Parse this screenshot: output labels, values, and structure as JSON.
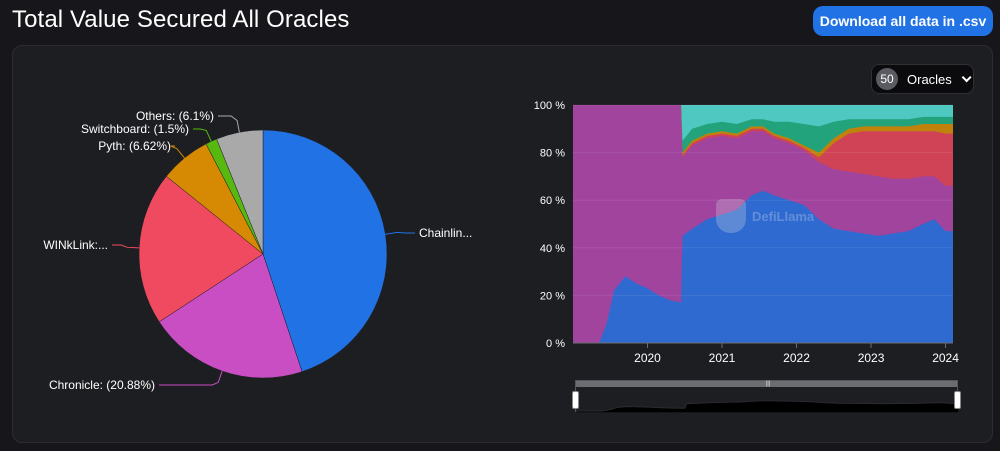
{
  "header": {
    "title": "Total Value Secured All Oracles",
    "download_label": "Download all data in .csv"
  },
  "oracle_selector": {
    "count": "50",
    "label": "Oracles"
  },
  "watermark": "DefiLlama",
  "chart_data": [
    {
      "type": "pie",
      "slices": [
        {
          "label": "Chainlin...",
          "value": 44.9,
          "color": "#2172e5"
        },
        {
          "label": "Chronicle: (20.88%)",
          "value": 20.88,
          "color": "#c94ec4"
        },
        {
          "label": "WINkLink:...",
          "value": 19.99,
          "color": "#f04a60"
        },
        {
          "label": "Pyth: (6.62%)",
          "value": 6.62,
          "color": "#d68a04"
        },
        {
          "label": "Switchboard: (1.5%)",
          "value": 1.5,
          "color": "#57b90f"
        },
        {
          "label": "Others: (6.1%)",
          "value": 6.1,
          "color": "#a9a9a9"
        }
      ]
    },
    {
      "type": "area",
      "stacked": true,
      "percent": true,
      "x_ticks": [
        "2020",
        "2021",
        "2022",
        "2023",
        "2024"
      ],
      "y_ticks": [
        "0 %",
        "20 %",
        "40 %",
        "60 %",
        "80 %",
        "100 %"
      ],
      "ylim": [
        0,
        100
      ],
      "xlim": [
        2019.0,
        2024.1
      ],
      "grid": true,
      "series": [
        {
          "color": "#2f6ad0",
          "points": [
            [
              2019.0,
              0
            ],
            [
              2019.35,
              0
            ],
            [
              2019.45,
              8
            ],
            [
              2019.55,
              22
            ],
            [
              2019.7,
              28
            ],
            [
              2019.85,
              25
            ],
            [
              2020.0,
              23
            ],
            [
              2020.15,
              20
            ],
            [
              2020.3,
              18
            ],
            [
              2020.45,
              17
            ],
            [
              2020.47,
              45
            ],
            [
              2020.6,
              48
            ],
            [
              2020.8,
              52
            ],
            [
              2021.0,
              54
            ],
            [
              2021.2,
              56
            ],
            [
              2021.4,
              62
            ],
            [
              2021.55,
              64
            ],
            [
              2021.7,
              62
            ],
            [
              2021.9,
              60
            ],
            [
              2022.1,
              58
            ],
            [
              2022.3,
              52
            ],
            [
              2022.5,
              48
            ],
            [
              2022.7,
              47
            ],
            [
              2022.9,
              46
            ],
            [
              2023.1,
              45
            ],
            [
              2023.3,
              46
            ],
            [
              2023.5,
              47
            ],
            [
              2023.7,
              50
            ],
            [
              2023.85,
              52
            ],
            [
              2024.0,
              47
            ],
            [
              2024.1,
              47
            ]
          ]
        },
        {
          "color": "#a0449e",
          "points": [
            [
              2019.0,
              100
            ],
            [
              2019.35,
              100
            ],
            [
              2019.45,
              100
            ],
            [
              2019.55,
              100
            ],
            [
              2019.7,
              100
            ],
            [
              2019.85,
              100
            ],
            [
              2020.0,
              100
            ],
            [
              2020.15,
              100
            ],
            [
              2020.3,
              100
            ],
            [
              2020.45,
              100
            ],
            [
              2020.47,
              78
            ],
            [
              2020.6,
              83
            ],
            [
              2020.8,
              86
            ],
            [
              2021.0,
              87
            ],
            [
              2021.2,
              86
            ],
            [
              2021.4,
              89
            ],
            [
              2021.55,
              89
            ],
            [
              2021.7,
              86
            ],
            [
              2021.9,
              84
            ],
            [
              2022.1,
              81
            ],
            [
              2022.3,
              76
            ],
            [
              2022.5,
              73
            ],
            [
              2022.7,
              72
            ],
            [
              2022.9,
              71
            ],
            [
              2023.1,
              70
            ],
            [
              2023.3,
              69
            ],
            [
              2023.5,
              69
            ],
            [
              2023.7,
              70
            ],
            [
              2023.85,
              70
            ],
            [
              2024.0,
              66
            ],
            [
              2024.1,
              66
            ]
          ]
        },
        {
          "color": "#d04356",
          "points": [
            [
              2019.0,
              100
            ],
            [
              2019.35,
              100
            ],
            [
              2019.45,
              100
            ],
            [
              2019.55,
              100
            ],
            [
              2019.7,
              100
            ],
            [
              2019.85,
              100
            ],
            [
              2020.0,
              100
            ],
            [
              2020.15,
              100
            ],
            [
              2020.3,
              100
            ],
            [
              2020.45,
              100
            ],
            [
              2020.47,
              79
            ],
            [
              2020.6,
              84
            ],
            [
              2020.8,
              87
            ],
            [
              2021.0,
              88
            ],
            [
              2021.2,
              87
            ],
            [
              2021.4,
              90
            ],
            [
              2021.55,
              90
            ],
            [
              2021.7,
              87
            ],
            [
              2021.9,
              85
            ],
            [
              2022.1,
              82
            ],
            [
              2022.3,
              78
            ],
            [
              2022.5,
              84
            ],
            [
              2022.7,
              88
            ],
            [
              2022.9,
              89
            ],
            [
              2023.1,
              89
            ],
            [
              2023.3,
              89
            ],
            [
              2023.5,
              89
            ],
            [
              2023.7,
              89
            ],
            [
              2023.85,
              89
            ],
            [
              2024.0,
              88
            ],
            [
              2024.1,
              88
            ]
          ]
        },
        {
          "color": "#c0820a",
          "points": [
            [
              2019.0,
              100
            ],
            [
              2019.35,
              100
            ],
            [
              2019.45,
              100
            ],
            [
              2019.55,
              100
            ],
            [
              2019.7,
              100
            ],
            [
              2019.85,
              100
            ],
            [
              2020.0,
              100
            ],
            [
              2020.15,
              100
            ],
            [
              2020.3,
              100
            ],
            [
              2020.45,
              100
            ],
            [
              2020.47,
              80
            ],
            [
              2020.6,
              85
            ],
            [
              2020.8,
              88
            ],
            [
              2021.0,
              89
            ],
            [
              2021.2,
              88
            ],
            [
              2021.4,
              91
            ],
            [
              2021.55,
              91
            ],
            [
              2021.7,
              88
            ],
            [
              2021.9,
              86
            ],
            [
              2022.1,
              83
            ],
            [
              2022.3,
              80
            ],
            [
              2022.5,
              86
            ],
            [
              2022.7,
              90
            ],
            [
              2022.9,
              91
            ],
            [
              2023.1,
              91
            ],
            [
              2023.3,
              91
            ],
            [
              2023.5,
              91
            ],
            [
              2023.7,
              92
            ],
            [
              2023.85,
              92
            ],
            [
              2024.0,
              92
            ],
            [
              2024.1,
              92
            ]
          ]
        },
        {
          "color": "#22a37c",
          "points": [
            [
              2019.0,
              100
            ],
            [
              2019.35,
              100
            ],
            [
              2019.45,
              100
            ],
            [
              2019.55,
              100
            ],
            [
              2019.7,
              100
            ],
            [
              2019.85,
              100
            ],
            [
              2020.0,
              100
            ],
            [
              2020.15,
              100
            ],
            [
              2020.3,
              100
            ],
            [
              2020.45,
              100
            ],
            [
              2020.47,
              85
            ],
            [
              2020.6,
              90
            ],
            [
              2020.8,
              92
            ],
            [
              2021.0,
              93
            ],
            [
              2021.2,
              92
            ],
            [
              2021.4,
              94
            ],
            [
              2021.55,
              94
            ],
            [
              2021.7,
              93
            ],
            [
              2021.9,
              93
            ],
            [
              2022.1,
              92
            ],
            [
              2022.3,
              91
            ],
            [
              2022.5,
              93
            ],
            [
              2022.7,
              94
            ],
            [
              2022.9,
              94
            ],
            [
              2023.1,
              94
            ],
            [
              2023.3,
              94
            ],
            [
              2023.5,
              94
            ],
            [
              2023.7,
              95
            ],
            [
              2023.85,
              95
            ],
            [
              2024.0,
              95
            ],
            [
              2024.1,
              95
            ]
          ]
        },
        {
          "color": "#4fc8c1",
          "points": [
            [
              2019.0,
              100
            ],
            [
              2019.35,
              100
            ],
            [
              2019.45,
              100
            ],
            [
              2019.55,
              100
            ],
            [
              2019.7,
              100
            ],
            [
              2019.85,
              100
            ],
            [
              2020.0,
              100
            ],
            [
              2020.15,
              100
            ],
            [
              2020.3,
              100
            ],
            [
              2020.45,
              100
            ],
            [
              2020.47,
              100
            ],
            [
              2020.6,
              100
            ],
            [
              2020.8,
              100
            ],
            [
              2021.0,
              100
            ],
            [
              2021.2,
              100
            ],
            [
              2021.4,
              100
            ],
            [
              2021.55,
              100
            ],
            [
              2021.7,
              100
            ],
            [
              2021.9,
              100
            ],
            [
              2022.1,
              100
            ],
            [
              2022.3,
              100
            ],
            [
              2022.5,
              100
            ],
            [
              2022.7,
              100
            ],
            [
              2022.9,
              100
            ],
            [
              2023.1,
              100
            ],
            [
              2023.3,
              100
            ],
            [
              2023.5,
              100
            ],
            [
              2023.7,
              100
            ],
            [
              2023.85,
              100
            ],
            [
              2024.0,
              100
            ],
            [
              2024.1,
              100
            ]
          ]
        }
      ]
    }
  ]
}
